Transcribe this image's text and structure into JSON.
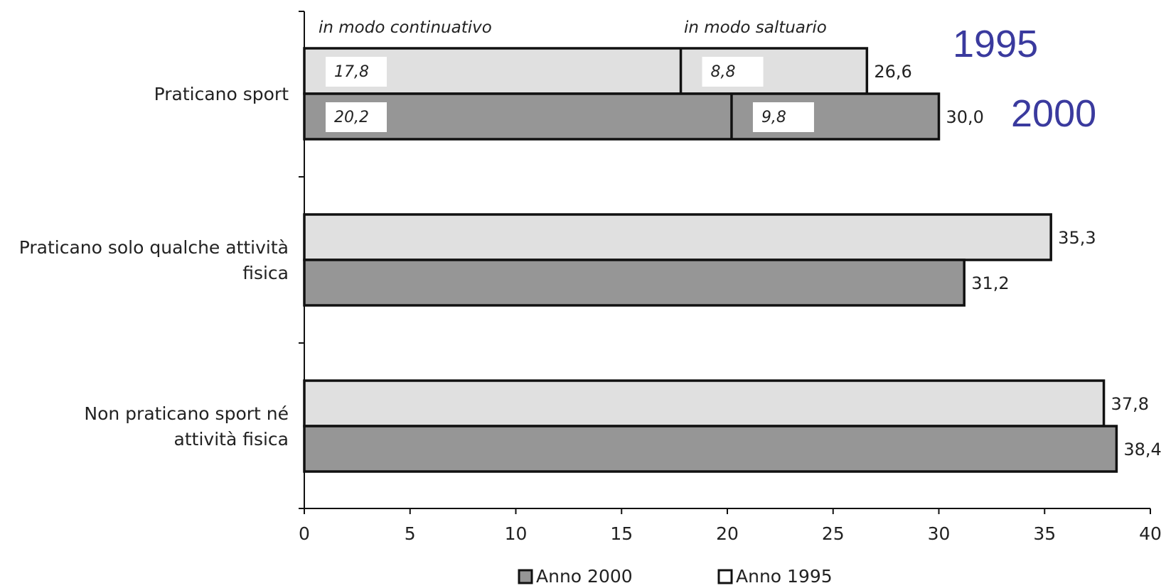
{
  "chart_data": {
    "type": "bar",
    "orientation": "horizontal",
    "categories": [
      [
        "Praticano sport"
      ],
      [
        "Praticano solo qualche attività",
        "fisica"
      ],
      [
        "Non praticano sport né",
        "attività fisica"
      ]
    ],
    "series": [
      {
        "name": "Anno  1995",
        "values": [
          26.6,
          35.3,
          37.8
        ],
        "labels": [
          "26,6",
          "35,3",
          "37,8"
        ],
        "color": "#e0e0e0"
      },
      {
        "name": "Anno 2000",
        "values": [
          30.0,
          31.2,
          38.4
        ],
        "labels": [
          "30,0",
          "31,2",
          "38,4"
        ],
        "color": "#969696"
      }
    ],
    "segments": {
      "headers": [
        "in modo continuativo",
        "in modo saltuario"
      ],
      "1995": {
        "values": [
          17.8,
          8.8
        ],
        "labels": [
          "17,8",
          "8,8"
        ]
      },
      "2000": {
        "values": [
          20.2,
          9.8
        ],
        "labels": [
          "20,2",
          "9,8"
        ]
      }
    },
    "annotations": [
      "1995",
      "2000"
    ],
    "xlim": [
      0,
      40
    ],
    "xticks": [
      0,
      5,
      10,
      15,
      20,
      25,
      30,
      35,
      40
    ],
    "grid": false,
    "legend": {
      "position": "bottom",
      "entries": [
        "Anno 2000",
        "Anno  1995"
      ]
    }
  }
}
